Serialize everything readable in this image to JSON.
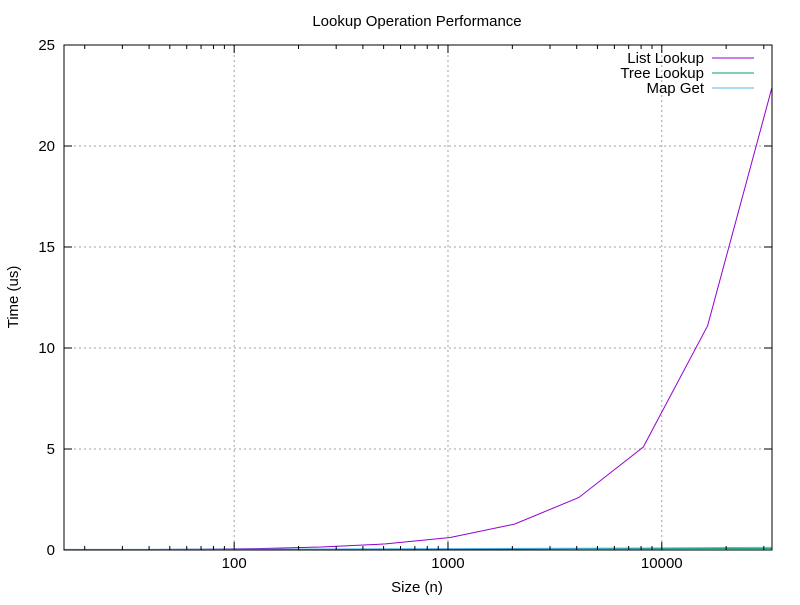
{
  "chart_data": {
    "type": "line",
    "title": "Lookup Operation Performance",
    "xlabel": "Size (n)",
    "ylabel": "Time (us)",
    "xscale": "log",
    "xlim": [
      16,
      32768
    ],
    "ylim": [
      0,
      25
    ],
    "xticks": [
      100,
      1000,
      10000
    ],
    "xtick_labels": [
      "100",
      "1000",
      "10000"
    ],
    "yticks": [
      0,
      5,
      10,
      15,
      20,
      25
    ],
    "ytick_labels": [
      "0",
      "5",
      "10",
      "15",
      "20",
      "25"
    ],
    "grid": true,
    "legend_position": "top-right",
    "x": [
      16,
      32,
      64,
      128,
      256,
      512,
      1024,
      2048,
      4096,
      8192,
      16384,
      32768
    ],
    "series": [
      {
        "name": "List Lookup",
        "color": "#9400d3",
        "values": [
          0.01,
          0.02,
          0.04,
          0.07,
          0.15,
          0.3,
          0.62,
          1.28,
          2.6,
          5.1,
          11.1,
          22.9
        ]
      },
      {
        "name": "Tree Lookup",
        "color": "#009e73",
        "values": [
          0.02,
          0.02,
          0.03,
          0.03,
          0.04,
          0.04,
          0.05,
          0.05,
          0.06,
          0.06,
          0.07,
          0.07
        ]
      },
      {
        "name": "Map Get",
        "color": "#56b4e9",
        "values": [
          0.03,
          0.03,
          0.04,
          0.04,
          0.05,
          0.06,
          0.07,
          0.08,
          0.09,
          0.1,
          0.12,
          0.13
        ]
      }
    ]
  }
}
